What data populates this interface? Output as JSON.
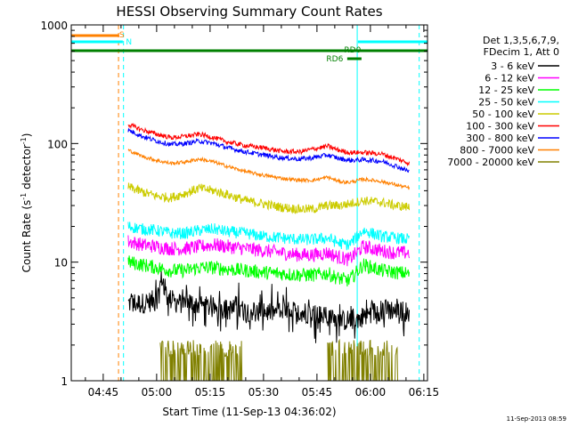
{
  "chart_data": {
    "type": "line",
    "title": "HESSI Observing Summary Count Rates",
    "xlabel": "Start Time (11-Sep-13 04:36:02)",
    "ylabel_prefix": "Count Rate (s",
    "ylabel_sup1": "-1",
    "ylabel_mid": " detector",
    "ylabel_sup2": "-1",
    "ylabel_suffix": ")",
    "yscale": "log",
    "ylim": [
      1,
      1000
    ],
    "xlim_minutes": [
      36.03,
      136.03
    ],
    "x_ticks": [
      {
        "label": "04:45",
        "minute": 45
      },
      {
        "label": "05:00",
        "minute": 60
      },
      {
        "label": "05:15",
        "minute": 75
      },
      {
        "label": "05:30",
        "minute": 90
      },
      {
        "label": "05:45",
        "minute": 105
      },
      {
        "label": "06:00",
        "minute": 120
      },
      {
        "label": "06:15",
        "minute": 135
      }
    ],
    "y_ticks": [
      {
        "label": "1",
        "value": 1
      },
      {
        "label": "10",
        "value": 10
      },
      {
        "label": "100",
        "value": 100
      },
      {
        "label": "1000",
        "value": 1000
      }
    ],
    "legend_header": [
      "Det 1,3,5,6,7,9,",
      "FDecim 1, Att 0"
    ],
    "legend_placement": "right",
    "series": [
      {
        "name": "3 - 6 keV",
        "color": "#000000",
        "x": [
          52,
          56,
          60,
          61.5,
          63,
          66,
          70,
          74,
          80,
          90,
          100,
          108,
          112,
          116,
          121,
          125,
          131
        ],
        "y": [
          4.5,
          4.5,
          4.8,
          7.5,
          5,
          4.5,
          4.5,
          4.2,
          4,
          3.8,
          3.8,
          3.5,
          3.2,
          3.3,
          3.8,
          4,
          3.8
        ]
      },
      {
        "name": "6 - 12 keV",
        "color": "#ff00ff",
        "x": [
          52,
          56,
          60,
          64,
          68,
          72,
          76,
          80,
          85,
          90,
          95,
          100,
          104,
          108,
          111,
          114,
          118,
          123,
          127,
          131
        ],
        "y": [
          15,
          14,
          13.5,
          13,
          13,
          13.5,
          14,
          13.5,
          13,
          12.5,
          12,
          11.5,
          11.5,
          12,
          11,
          10.5,
          13.5,
          12.5,
          12,
          12
        ]
      },
      {
        "name": "12 - 25 keV",
        "color": "#00ff00",
        "x": [
          52,
          56,
          60,
          64,
          68,
          72,
          76,
          80,
          85,
          90,
          95,
          100,
          104,
          108,
          111,
          114,
          118,
          123,
          127,
          131
        ],
        "y": [
          10,
          9.5,
          9,
          8.5,
          8.5,
          9,
          9,
          8.7,
          8.5,
          8.2,
          8,
          7.8,
          7.8,
          8,
          7.3,
          7,
          9.5,
          8.5,
          8.2,
          8
        ]
      },
      {
        "name": "25 - 50 keV",
        "color": "#00ffff",
        "x": [
          52,
          56,
          60,
          64,
          68,
          72,
          76,
          80,
          85,
          90,
          95,
          100,
          104,
          108,
          111,
          114,
          118,
          123,
          127,
          131
        ],
        "y": [
          20,
          19,
          18.5,
          17.5,
          17.5,
          18.5,
          19,
          18,
          17.5,
          16.5,
          16,
          15.5,
          15.5,
          16,
          14.5,
          14,
          18.5,
          16.5,
          16,
          15.5
        ]
      },
      {
        "name": "50 - 100 keV",
        "color": "#cccc00",
        "x": [
          52,
          56,
          60,
          64,
          68,
          72,
          76,
          80,
          85,
          90,
          95,
          100,
          104,
          108,
          111,
          114,
          118,
          123,
          127,
          131
        ],
        "y": [
          43,
          39,
          36,
          35,
          38,
          42,
          40,
          37,
          33,
          31,
          29,
          28,
          28,
          30,
          30,
          31,
          33,
          32,
          30,
          29
        ]
      },
      {
        "name": "100 - 300 keV",
        "color": "#ff0000",
        "x": [
          52,
          56,
          60,
          64,
          68,
          72,
          76,
          80,
          85,
          90,
          95,
          100,
          104,
          108,
          111,
          114,
          118,
          123,
          127,
          131
        ],
        "y": [
          145,
          130,
          120,
          112,
          115,
          120,
          112,
          103,
          96,
          92,
          86,
          85,
          90,
          95,
          88,
          84,
          84,
          82,
          75,
          68
        ]
      },
      {
        "name": "300 - 800 keV",
        "color": "#0000ff",
        "x": [
          52,
          56,
          60,
          64,
          68,
          72,
          76,
          80,
          85,
          90,
          95,
          100,
          104,
          108,
          111,
          114,
          118,
          123,
          127,
          131
        ],
        "y": [
          130,
          115,
          105,
          98,
          100,
          105,
          100,
          92,
          85,
          80,
          76,
          74,
          76,
          80,
          75,
          72,
          73,
          71,
          65,
          58
        ]
      },
      {
        "name": "800 - 7000 keV",
        "color": "#ff8000",
        "x": [
          52,
          56,
          60,
          64,
          68,
          72,
          76,
          80,
          85,
          90,
          95,
          100,
          104,
          108,
          111,
          114,
          118,
          123,
          127,
          131
        ],
        "y": [
          88,
          78,
          72,
          68,
          70,
          74,
          70,
          64,
          58,
          54,
          51,
          49,
          49,
          52,
          48,
          47,
          50,
          48,
          45,
          42
        ]
      },
      {
        "name": "7000 - 20000 keV",
        "color": "#808000",
        "x": [
          61,
          65,
          69,
          73,
          77,
          80,
          84,
          108,
          112,
          116,
          120,
          124,
          128
        ],
        "y": [
          1.5,
          1.6,
          1.5,
          1.6,
          1.5,
          1.6,
          1.5,
          1.6,
          1.5,
          1.6,
          1.5,
          1.6,
          1.5
        ]
      }
    ],
    "attenuator_bars": [
      {
        "label": "S",
        "color": "#ff8000",
        "x_start": 36.03,
        "x_end": 49.5
      },
      {
        "label": "N",
        "color": "#00ffff",
        "x_start": 36.03,
        "x_end": 50.5
      },
      {
        "label": "N",
        "color": "#00ffff",
        "x_start": 116.5,
        "x_end": 136.03
      },
      {
        "label": "",
        "color": "#008000",
        "x_start": 36.03,
        "x_end": 136.03
      },
      {
        "label": "RD6",
        "color": "#008000",
        "x_start": 113.5,
        "x_end": 117.5
      }
    ],
    "bar_labels": [
      {
        "text": "S",
        "color": "#ff8000",
        "x": 50.2
      },
      {
        "text": "N",
        "color": "#00ffff",
        "x": 52.2
      },
      {
        "text": "RD0",
        "color": "#008000",
        "x": 115
      },
      {
        "text": "RD6",
        "color": "#008000",
        "x": 110
      }
    ],
    "vertical_markers": [
      {
        "color": "#00ffff",
        "style": "solid",
        "x": 36.03
      },
      {
        "color": "#ff8000",
        "style": "dashed",
        "x": 49.3
      },
      {
        "color": "#00ffff",
        "style": "dashed",
        "x": 50.7
      },
      {
        "color": "#00ffff",
        "style": "solid",
        "x": 116.3
      },
      {
        "color": "#00ffff",
        "style": "dashed",
        "x": 133.7
      }
    ]
  },
  "footer_timestamp": "11-Sep-2013 08:59"
}
